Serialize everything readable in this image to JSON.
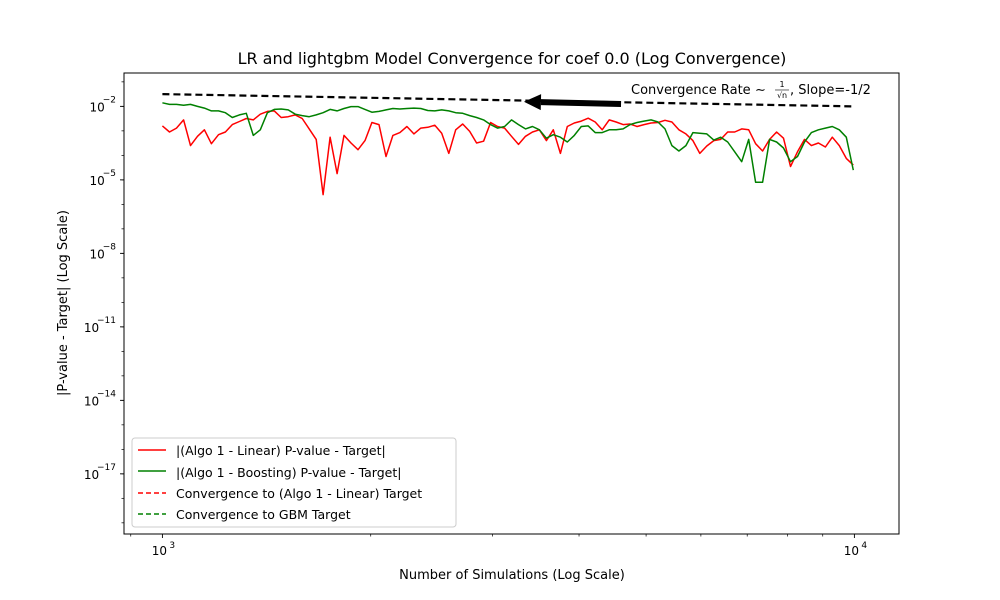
{
  "chart_data": {
    "type": "line",
    "title": "LR and lightgbm Model Convergence for coef 0.0 (Log Convergence)",
    "xlabel": "Number of Simulations (Log Scale)",
    "ylabel": "|P-value - Target| (Log Scale)",
    "xscale": "log",
    "yscale": "log",
    "xlim": [
      880,
      11600
    ],
    "ylim": [
      3.5e-20,
      0.23
    ],
    "x_major_ticks": [
      {
        "value": 1000,
        "base": "10",
        "exp": "3"
      },
      {
        "value": 10000,
        "base": "10",
        "exp": "4"
      }
    ],
    "y_major_ticks": [
      {
        "value": 0.01,
        "base": "10",
        "exp": "−2"
      },
      {
        "value": 1e-05,
        "base": "10",
        "exp": "−5"
      },
      {
        "value": 1e-08,
        "base": "10",
        "exp": "−8"
      },
      {
        "value": 1e-11,
        "base": "10",
        "exp": "−11"
      },
      {
        "value": 1e-14,
        "base": "10",
        "exp": "−14"
      },
      {
        "value": 1e-17,
        "base": "10",
        "exp": "−17"
      }
    ],
    "grid": false,
    "legend_position": "lower-left",
    "series": [
      {
        "name": "|(Algo 1 - Linear) P-value - Target|",
        "color": "#ff0000",
        "style": "solid",
        "x": [
          1000,
          1024,
          1048,
          1073,
          1098,
          1124,
          1150,
          1177,
          1205,
          1233,
          1262,
          1292,
          1322,
          1353,
          1385,
          1418,
          1451,
          1485,
          1520,
          1556,
          1592,
          1630,
          1668,
          1707,
          1747,
          1788,
          1830,
          1873,
          1917,
          1962,
          2008,
          2056,
          2104,
          2153,
          2204,
          2256,
          2309,
          2363,
          2418,
          2475,
          2533,
          2593,
          2654,
          2716,
          2780,
          2845,
          2912,
          2980,
          3050,
          3122,
          3195,
          3270,
          3347,
          3426,
          3506,
          3588,
          3672,
          3759,
          3847,
          3937,
          4030,
          4124,
          4221,
          4320,
          4422,
          4525,
          4632,
          4740,
          4852,
          4966,
          5082,
          5202,
          5324,
          5449,
          5577,
          5708,
          5842,
          5979,
          6120,
          6263,
          6410,
          6561,
          6715,
          6873,
          7034,
          7199,
          7368,
          7541,
          7718,
          7899,
          8085,
          8275,
          8469,
          8667,
          8871,
          9079,
          9292,
          9510,
          9733,
          9962
        ],
        "y": [
          0.0016,
          0.0009,
          0.0013,
          0.0028,
          0.00025,
          0.0006,
          0.0011,
          0.0003,
          0.0007,
          0.0009,
          0.0018,
          0.0024,
          0.0032,
          0.0028,
          0.0048,
          0.0062,
          0.0065,
          0.0035,
          0.0038,
          0.0045,
          0.0032,
          0.0012,
          0.00045,
          2.5e-06,
          0.00055,
          1.8e-05,
          0.00065,
          0.00032,
          0.00017,
          0.0004,
          0.0022,
          0.0018,
          9e-05,
          0.00065,
          0.00085,
          0.0015,
          0.00075,
          0.0013,
          0.0014,
          0.0017,
          0.0008,
          0.00012,
          0.0011,
          0.0019,
          0.00095,
          0.00032,
          0.00038,
          0.0022,
          0.0015,
          0.0013,
          0.0006,
          0.00028,
          0.0006,
          0.0009,
          0.0011,
          0.0004,
          0.0011,
          0.00012,
          0.0015,
          0.0021,
          0.0025,
          0.0033,
          0.0023,
          0.0011,
          0.0028,
          0.0023,
          0.0018,
          0.0019,
          0.0015,
          0.0018,
          0.0021,
          0.0022,
          0.0027,
          0.0023,
          0.0011,
          0.00075,
          0.0004,
          0.00012,
          0.00024,
          0.0004,
          0.00045,
          0.0009,
          0.0009,
          0.0012,
          0.0011,
          0.0003,
          0.00015,
          0.00045,
          0.0009,
          0.0005,
          3.5e-05,
          0.00014,
          0.00045,
          0.00025,
          0.00032,
          0.00022,
          0.00055,
          0.00025,
          7.5e-05,
          4e-05
        ],
        "raw_y_hint": "approximate values read from log axis"
      },
      {
        "name": "|(Algo 1 - Boosting) P-value - Target|",
        "color": "#008000",
        "style": "solid",
        "x": [
          1000,
          1024,
          1048,
          1073,
          1098,
          1124,
          1150,
          1177,
          1205,
          1233,
          1262,
          1292,
          1322,
          1353,
          1385,
          1418,
          1451,
          1485,
          1520,
          1556,
          1592,
          1630,
          1668,
          1707,
          1747,
          1788,
          1830,
          1873,
          1917,
          1962,
          2008,
          2056,
          2104,
          2153,
          2204,
          2256,
          2309,
          2363,
          2418,
          2475,
          2533,
          2593,
          2654,
          2716,
          2780,
          2845,
          2912,
          2980,
          3050,
          3122,
          3195,
          3270,
          3347,
          3426,
          3506,
          3588,
          3672,
          3759,
          3847,
          3937,
          4030,
          4124,
          4221,
          4320,
          4422,
          4525,
          4632,
          4740,
          4852,
          4966,
          5082,
          5202,
          5324,
          5449,
          5577,
          5708,
          5842,
          5979,
          6120,
          6263,
          6410,
          6561,
          6715,
          6873,
          7034,
          7199,
          7368,
          7541,
          7718,
          7899,
          8085,
          8275,
          8469,
          8667,
          8871,
          9079,
          9292,
          9510,
          9733,
          9962
        ],
        "y": [
          0.014,
          0.012,
          0.012,
          0.011,
          0.012,
          0.01,
          0.0085,
          0.0065,
          0.0065,
          0.0055,
          0.0035,
          0.0045,
          0.0052,
          0.00065,
          0.0011,
          0.0055,
          0.0075,
          0.0078,
          0.0072,
          0.0048,
          0.0042,
          0.0038,
          0.0045,
          0.0055,
          0.0075,
          0.0065,
          0.0082,
          0.0098,
          0.0098,
          0.0075,
          0.0058,
          0.0062,
          0.0072,
          0.0082,
          0.0078,
          0.0082,
          0.0085,
          0.0082,
          0.0068,
          0.0065,
          0.0072,
          0.0065,
          0.0055,
          0.0052,
          0.0042,
          0.0035,
          0.0028,
          0.0018,
          0.0013,
          0.0015,
          0.0028,
          0.0018,
          0.0012,
          0.0015,
          0.0011,
          0.0005,
          0.0007,
          0.00055,
          0.00035,
          0.00065,
          0.0015,
          0.0016,
          0.00085,
          0.00085,
          0.0011,
          0.0011,
          0.0012,
          0.0018,
          0.0022,
          0.0025,
          0.0028,
          0.0023,
          0.0012,
          0.00025,
          0.00015,
          0.00025,
          0.00085,
          0.0008,
          0.00075,
          0.00042,
          0.00055,
          0.00035,
          0.00014,
          5.5e-05,
          0.00045,
          8e-06,
          8e-06,
          0.00045,
          0.00035,
          0.0002,
          5.5e-05,
          9e-05,
          0.00035,
          0.00085,
          0.0011,
          0.0013,
          0.0015,
          0.0011,
          0.00055,
          2.5e-05
        ]
      },
      {
        "name": "Convergence to (Algo 1 - Linear) Target",
        "color": "#ff0000",
        "style": "dashed",
        "x": [],
        "y": []
      },
      {
        "name": "Convergence to GBM Target",
        "color": "#008000",
        "style": "dashed",
        "x": [],
        "y": []
      },
      {
        "name": "",
        "color": "#000000",
        "style": "dashed",
        "x": [
          1000,
          10000
        ],
        "y": [
          0.0316,
          0.01
        ]
      }
    ],
    "annotation": {
      "text_prefix": "Convergence Rate",
      "tilde": "∼",
      "frac_num": "1",
      "frac_den": "√n",
      "text_suffix": ", Slope=-1/2",
      "arrow_from": {
        "x": 4600,
        "y": 0.0125
      },
      "arrow_to": {
        "x": 3330,
        "y": 0.0155
      }
    }
  }
}
